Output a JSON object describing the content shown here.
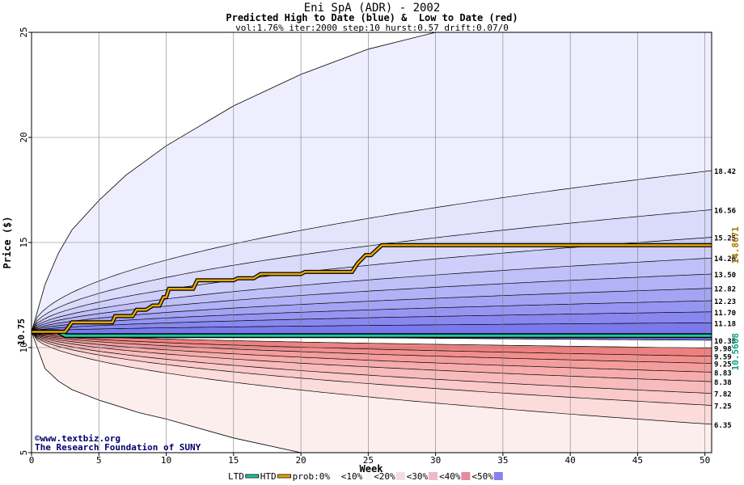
{
  "header": {
    "title": "Eni SpA (ADR) - 2002",
    "subtitle": "Predicted High to Date (blue) &  Low to Date (red)",
    "params": "vol:1.76% iter:2000 step:10 hurst:0.57 drift:0.07/0"
  },
  "credits": {
    "copyright": "©www.textbiz.org",
    "org": "The Research Foundation of SUNY"
  },
  "chart_data": {
    "type": "area",
    "xlabel": "Week",
    "ylabel": "Price ($)",
    "xlim": [
      0,
      50.5
    ],
    "ylim": [
      5,
      25
    ],
    "x_ticks": [
      0,
      5,
      10,
      15,
      20,
      25,
      30,
      35,
      40,
      45,
      50
    ],
    "y_ticks": [
      5,
      10,
      15,
      20,
      25
    ],
    "start_price": 10.75,
    "start_price_label": "10.75",
    "grid": true,
    "colors": {
      "high_band_light": "#eeeeff",
      "high_band_mid": "#d8d8fb",
      "high_band_dark": "#7a7aee",
      "low_band_light": "#fdeeee",
      "low_band_mid": "#fbcdcd",
      "low_band_dark": "#ef8080",
      "htd_line": "#e5a800",
      "ltd_line": "#20c8a0"
    },
    "high_quantile_final_values": [
      18.42,
      16.56,
      15.25,
      14.26,
      13.5,
      12.82,
      12.23,
      11.7,
      11.18,
      10.35
    ],
    "low_quantile_final_values": [
      9.98,
      9.59,
      9.25,
      8.83,
      8.38,
      7.82,
      7.25,
      6.35
    ],
    "envelope_upper": {
      "x": [
        0,
        1,
        2,
        3,
        5,
        7,
        10,
        15,
        20,
        25,
        30
      ],
      "y": [
        10.75,
        13.0,
        14.5,
        15.6,
        17.0,
        18.2,
        19.6,
        21.5,
        23.0,
        24.2,
        25.0
      ]
    },
    "envelope_lower": {
      "x": [
        0,
        1,
        2,
        3,
        5,
        8,
        10,
        15,
        20,
        25,
        30
      ],
      "y": [
        10.75,
        9.0,
        8.4,
        8.0,
        7.5,
        6.9,
        6.6,
        5.7,
        5.0,
        4.8,
        4.7
      ]
    },
    "series": [
      {
        "name": "HTD",
        "final_value_label": "14.8671",
        "x": [
          0,
          2.5,
          3,
          6,
          6.2,
          7.5,
          7.8,
          8.5,
          9,
          9.5,
          9.8,
          10,
          10.2,
          12,
          12.3,
          15,
          15.3,
          16.5,
          17,
          20,
          20.3,
          23.8,
          24.2,
          24.8,
          25.2,
          26,
          50.5
        ],
        "y": [
          10.75,
          10.75,
          11.2,
          11.2,
          11.5,
          11.5,
          11.8,
          11.8,
          12.0,
          12.0,
          12.4,
          12.4,
          12.8,
          12.8,
          13.2,
          13.2,
          13.3,
          13.3,
          13.5,
          13.5,
          13.6,
          13.6,
          14.0,
          14.4,
          14.4,
          14.87,
          14.87
        ]
      },
      {
        "name": "LTD",
        "final_value_label": "10.5668",
        "x": [
          0,
          2,
          2.5,
          50.5
        ],
        "y": [
          10.75,
          10.75,
          10.57,
          10.57
        ]
      }
    ],
    "legend": {
      "placement": "bottom",
      "items": [
        {
          "label": "LTD",
          "color": "#20c8a0",
          "kind": "line"
        },
        {
          "label": "HTD",
          "color": "#e5a800",
          "kind": "line"
        },
        {
          "label": "prob:0%",
          "color": "#ffffff",
          "kind": "swatch"
        },
        {
          "label": "<10%",
          "color": "#fdf7f7",
          "kind": "swatch"
        },
        {
          "label": "<20%",
          "color": "#f3dddd",
          "kind": "swatch"
        },
        {
          "label": "<30%",
          "color": "#f0b8c8",
          "kind": "swatch"
        },
        {
          "label": "<40%",
          "color": "#e98aa0",
          "kind": "swatch"
        },
        {
          "label": "<50%",
          "color": "#8a80ee",
          "kind": "swatch"
        }
      ]
    }
  }
}
